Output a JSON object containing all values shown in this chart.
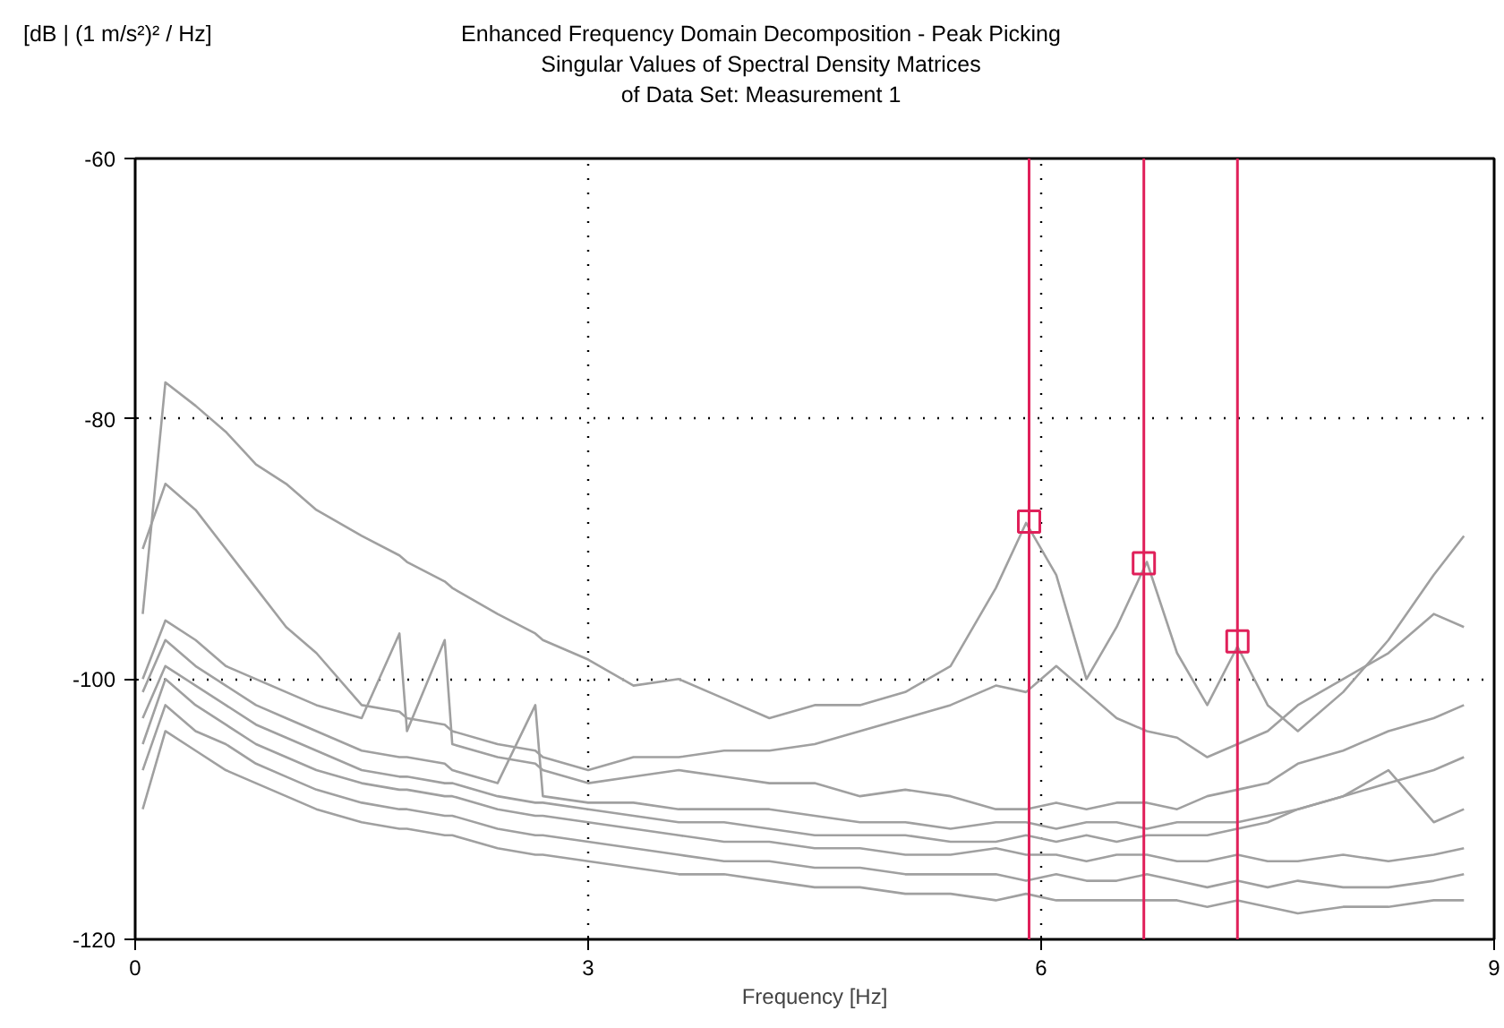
{
  "chart_data": {
    "type": "line",
    "title": "Enhanced Frequency Domain Decomposition - Peak Picking",
    "subtitle": "Singular Values of Spectral Density Matrices\nof Data Set: Measurement 1",
    "xlabel": "Frequency [Hz]",
    "annotations": [
      "[dB | (1 m/s²)² / Hz]"
    ],
    "x": [
      0.05,
      0.2,
      0.4,
      0.6,
      0.8,
      1.0,
      1.2,
      1.5,
      1.75,
      1.8,
      2.05,
      2.1,
      2.4,
      2.65,
      2.7,
      3.0,
      3.3,
      3.6,
      3.9,
      4.2,
      4.5,
      4.8,
      5.1,
      5.4,
      5.7,
      5.9,
      6.1,
      6.3,
      6.5,
      6.7,
      6.9,
      7.1,
      7.3,
      7.5,
      7.7,
      8.0,
      8.3,
      8.6,
      8.8
    ],
    "series": [
      {
        "color": "#a0a0a0",
        "values": [
          -95,
          -77.2,
          -79,
          -81,
          -83.5,
          -85,
          -87,
          -89,
          -90.5,
          -91,
          -92.5,
          -93,
          -95,
          -96.5,
          -97,
          -98.5,
          -100.5,
          -100,
          -101.5,
          -103,
          -102,
          -102,
          -101,
          -99,
          -93,
          -88,
          -92,
          -100,
          -96,
          -91,
          -98,
          -102,
          -97.5,
          -102,
          -104,
          -101,
          -97,
          -92,
          -89
        ]
      },
      {
        "color": "#a0a0a0",
        "values": [
          -90,
          -85,
          -87,
          -90,
          -93,
          -96,
          -98,
          -102,
          -102.5,
          -103,
          -103.5,
          -104,
          -105,
          -105.5,
          -106,
          -107,
          -106,
          -106,
          -105.5,
          -105.5,
          -105,
          -104,
          -103,
          -102,
          -100.5,
          -101,
          -99,
          -101,
          -103,
          -104,
          -104.5,
          -106,
          -105,
          -104,
          -102,
          -100,
          -98,
          -95,
          -96
        ]
      },
      {
        "color": "#a0a0a0",
        "values": [
          -100,
          -95.5,
          -97,
          -99,
          -100,
          -101,
          -102,
          -103,
          -96.5,
          -104,
          -97,
          -105,
          -106,
          -106.5,
          -107,
          -108,
          -107.5,
          -107,
          -107.5,
          -108,
          -108,
          -109,
          -108.5,
          -109,
          -110,
          -110,
          -109.5,
          -110,
          -109.5,
          -109.5,
          -110,
          -109,
          -108.5,
          -108,
          -106.5,
          -105.5,
          -104,
          -103,
          -102
        ]
      },
      {
        "color": "#a0a0a0",
        "values": [
          -101,
          -97,
          -99,
          -100.5,
          -102,
          -103,
          -104,
          -105.5,
          -106,
          -106,
          -106.5,
          -107,
          -108,
          -102,
          -109,
          -109.5,
          -109.5,
          -110,
          -110,
          -110,
          -110.5,
          -111,
          -111,
          -111.5,
          -111,
          -111,
          -111.5,
          -111,
          -111,
          -111.5,
          -111,
          -111,
          -111,
          -110.5,
          -110,
          -109,
          -108,
          -107,
          -106
        ]
      },
      {
        "color": "#a0a0a0",
        "values": [
          -103,
          -99,
          -100.5,
          -102,
          -103.5,
          -104.5,
          -105.5,
          -107,
          -107.5,
          -107.5,
          -108,
          -108,
          -109,
          -109.5,
          -109.5,
          -110,
          -110.5,
          -111,
          -111,
          -111.5,
          -112,
          -112,
          -112,
          -112.5,
          -112.5,
          -112,
          -112.5,
          -112,
          -112.5,
          -112,
          -112,
          -112,
          -111.5,
          -111,
          -110,
          -109,
          -107,
          -111,
          -110
        ]
      },
      {
        "color": "#a0a0a0",
        "values": [
          -105,
          -100,
          -102,
          -103.5,
          -105,
          -106,
          -107,
          -108,
          -108.5,
          -108.5,
          -109,
          -109,
          -110,
          -110.5,
          -110.5,
          -111,
          -111.5,
          -112,
          -112.5,
          -112.5,
          -113,
          -113,
          -113.5,
          -113.5,
          -113,
          -113.5,
          -113.5,
          -114,
          -113.5,
          -113.5,
          -114,
          -114,
          -113.5,
          -114,
          -114,
          -113.5,
          -114,
          -113.5,
          -113
        ]
      },
      {
        "color": "#a0a0a0",
        "values": [
          -107,
          -102,
          -104,
          -105,
          -106.5,
          -107.5,
          -108.5,
          -109.5,
          -110,
          -110,
          -110.5,
          -110.5,
          -111.5,
          -112,
          -112,
          -112.5,
          -113,
          -113.5,
          -114,
          -114,
          -114.5,
          -114.5,
          -115,
          -115,
          -115,
          -115.5,
          -115,
          -115.5,
          -115.5,
          -115,
          -115.5,
          -116,
          -115.5,
          -116,
          -115.5,
          -116,
          -116,
          -115.5,
          -115
        ]
      },
      {
        "color": "#a0a0a0",
        "values": [
          -110,
          -104,
          -105.5,
          -107,
          -108,
          -109,
          -110,
          -111,
          -111.5,
          -111.5,
          -112,
          -112,
          -113,
          -113.5,
          -113.5,
          -114,
          -114.5,
          -115,
          -115,
          -115.5,
          -116,
          -116,
          -116.5,
          -116.5,
          -117,
          -116.5,
          -117,
          -117,
          -117,
          -117,
          -117,
          -117.5,
          -117,
          -117.5,
          -118,
          -117.5,
          -117.5,
          -117,
          -117
        ]
      },
      {
        "type": "scatter",
        "marker": "square",
        "color": "#e0205a",
        "x": [
          5.92,
          6.68,
          7.3
        ],
        "values": [
          -87.9,
          -91.1,
          -97.1
        ]
      }
    ],
    "ref_lines": [
      {
        "axis": "x",
        "value": 5.92,
        "color": "#e0205a"
      },
      {
        "axis": "x",
        "value": 6.68,
        "color": "#e0205a"
      },
      {
        "axis": "x",
        "value": 7.3,
        "color": "#e0205a"
      }
    ],
    "xlim": [
      0,
      9
    ],
    "ylim": [
      -120,
      -60
    ],
    "xticks": [
      0,
      3,
      6,
      9
    ],
    "yticks": [
      -120,
      -100,
      -80,
      -60
    ],
    "grid": true
  }
}
